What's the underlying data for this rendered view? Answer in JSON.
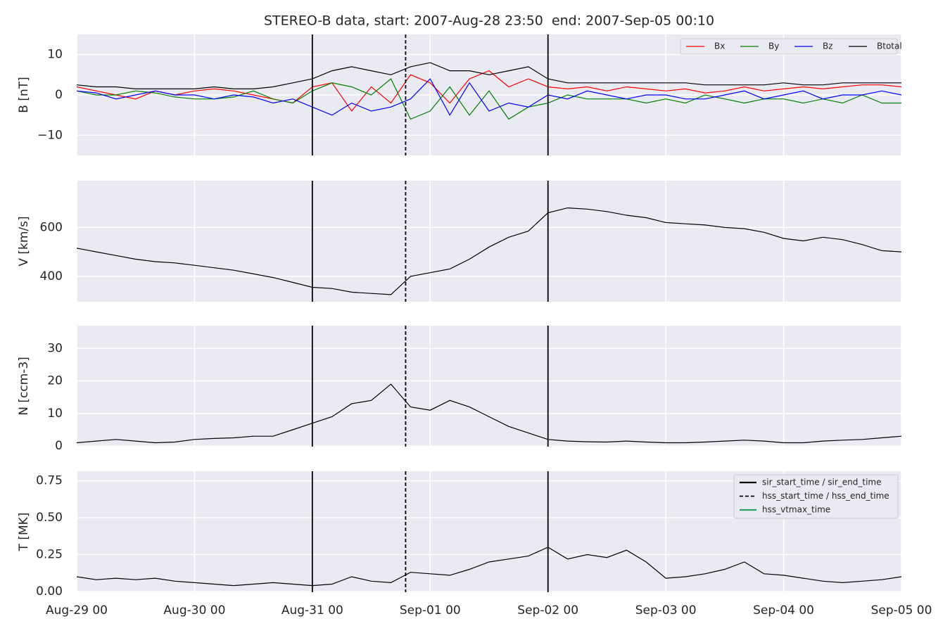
{
  "chart_data": [
    {
      "type": "line",
      "title": "STEREO-B data, start: 2007-Aug-28 23:50  end: 2007-Sep-05 00:10",
      "ylabel": "B [nT]",
      "x": [
        "Aug-29 00",
        "Aug-29 04",
        "Aug-29 08",
        "Aug-29 12",
        "Aug-29 16",
        "Aug-29 20",
        "Aug-30 00",
        "Aug-30 04",
        "Aug-30 08",
        "Aug-30 12",
        "Aug-30 16",
        "Aug-30 20",
        "Aug-31 00",
        "Aug-31 04",
        "Aug-31 08",
        "Aug-31 12",
        "Aug-31 16",
        "Aug-31 20",
        "Sep-01 00",
        "Sep-01 04",
        "Sep-01 08",
        "Sep-01 12",
        "Sep-01 16",
        "Sep-01 20",
        "Sep-02 00",
        "Sep-02 04",
        "Sep-02 08",
        "Sep-02 12",
        "Sep-02 16",
        "Sep-02 20",
        "Sep-03 00",
        "Sep-03 04",
        "Sep-03 08",
        "Sep-03 12",
        "Sep-03 16",
        "Sep-03 20",
        "Sep-04 00",
        "Sep-04 04",
        "Sep-04 08",
        "Sep-04 12",
        "Sep-04 16",
        "Sep-04 20",
        "Sep-05 00"
      ],
      "series": [
        {
          "name": "Bx",
          "color": "#ff0000",
          "values": [
            2,
            1,
            0,
            -1,
            1,
            0,
            1,
            1.5,
            1,
            0,
            -1,
            -2,
            2,
            3,
            -4,
            2,
            -2,
            5,
            3,
            -2,
            4,
            6,
            2,
            4,
            2,
            1.5,
            2,
            1,
            2,
            1.5,
            1,
            1.5,
            0.5,
            1,
            2,
            1,
            1.5,
            2,
            1.5,
            2,
            2.5,
            2.5,
            2
          ]
        },
        {
          "name": "By",
          "color": "#008000",
          "values": [
            1,
            0,
            0,
            1,
            0.5,
            -0.5,
            -1,
            -1,
            -0.5,
            1,
            -1,
            -2,
            1,
            3,
            2,
            0,
            4,
            -6,
            -4,
            2,
            -5,
            1,
            -6,
            -3,
            -2,
            0,
            -1,
            -1,
            -1,
            -2,
            -1,
            -2,
            0,
            -1,
            -2,
            -1,
            -1,
            -2,
            -1,
            -2,
            0,
            -2,
            -2
          ]
        },
        {
          "name": "Bz",
          "color": "#0000ff",
          "values": [
            1,
            0.5,
            -1,
            0,
            1,
            0,
            0,
            -1,
            0,
            -0.5,
            -2,
            -1,
            -3,
            -5,
            -2,
            -4,
            -3,
            -1,
            4,
            -5,
            3,
            -4,
            -2,
            -3,
            0,
            -1,
            1,
            0,
            -1,
            0,
            0,
            -1,
            -1,
            0,
            1,
            -1,
            0,
            1,
            -1,
            0,
            0,
            1,
            0
          ]
        },
        {
          "name": "Btotal",
          "color": "#000000",
          "values": [
            2.5,
            2,
            2,
            1.5,
            1.5,
            1.5,
            1.5,
            2,
            1.5,
            1.5,
            2,
            3,
            4,
            6,
            7,
            6,
            5,
            7,
            8,
            6,
            6,
            5,
            6,
            7,
            4,
            3,
            3,
            3,
            3,
            3,
            3,
            3,
            2.5,
            2.5,
            2.5,
            2.5,
            3,
            2.5,
            2.5,
            3,
            3,
            3,
            3
          ]
        }
      ],
      "xlim": [
        "Aug-29 00",
        "Sep-05 00"
      ],
      "xticks": [
        "Aug-29 00",
        "Aug-30 00",
        "Aug-31 00",
        "Sep-01 00",
        "Sep-02 00",
        "Sep-03 00",
        "Sep-04 00",
        "Sep-05 00"
      ],
      "ylim": [
        -15,
        15
      ],
      "yticks": [
        {
          "value": -10,
          "label": "−10"
        },
        0,
        10
      ],
      "vlines": [
        {
          "x": "Aug-31 00",
          "style": "solid"
        },
        {
          "x": "Aug-31 19",
          "style": "dashed"
        },
        {
          "x": "Sep-02 00",
          "style": "solid"
        }
      ],
      "legend": "upper right",
      "grid": true
    },
    {
      "type": "line",
      "ylabel": "V [km/s]",
      "x": [
        "Aug-29 00",
        "Aug-29 04",
        "Aug-29 08",
        "Aug-29 12",
        "Aug-29 16",
        "Aug-29 20",
        "Aug-30 00",
        "Aug-30 04",
        "Aug-30 08",
        "Aug-30 12",
        "Aug-30 16",
        "Aug-30 20",
        "Aug-31 00",
        "Aug-31 04",
        "Aug-31 08",
        "Aug-31 12",
        "Aug-31 16",
        "Aug-31 20",
        "Sep-01 00",
        "Sep-01 04",
        "Sep-01 08",
        "Sep-01 12",
        "Sep-01 16",
        "Sep-01 20",
        "Sep-02 00",
        "Sep-02 04",
        "Sep-02 08",
        "Sep-02 12",
        "Sep-02 16",
        "Sep-02 20",
        "Sep-03 00",
        "Sep-03 04",
        "Sep-03 08",
        "Sep-03 12",
        "Sep-03 16",
        "Sep-03 20",
        "Sep-04 00",
        "Sep-04 04",
        "Sep-04 08",
        "Sep-04 12",
        "Sep-04 16",
        "Sep-04 20",
        "Sep-05 00"
      ],
      "series": [
        {
          "color": "#000000",
          "values": [
            515,
            500,
            485,
            470,
            460,
            455,
            445,
            435,
            425,
            410,
            395,
            375,
            355,
            350,
            335,
            330,
            325,
            400,
            415,
            430,
            470,
            520,
            560,
            585,
            660,
            680,
            675,
            665,
            650,
            640,
            620,
            615,
            610,
            600,
            595,
            580,
            555,
            545,
            560,
            550,
            530,
            505,
            500
          ]
        }
      ],
      "xlim": [
        "Aug-29 00",
        "Sep-05 00"
      ],
      "xticks": [
        "Aug-29 00",
        "Aug-30 00",
        "Aug-31 00",
        "Sep-01 00",
        "Sep-02 00",
        "Sep-03 00",
        "Sep-04 00",
        "Sep-05 00"
      ],
      "ylim": [
        296,
        791
      ],
      "yticks": [
        400,
        600
      ],
      "vlines": [
        {
          "x": "Aug-31 00",
          "style": "solid"
        },
        {
          "x": "Aug-31 19",
          "style": "dashed"
        },
        {
          "x": "Sep-02 00",
          "style": "solid"
        }
      ],
      "grid": true
    },
    {
      "type": "line",
      "ylabel": "N [ccm-3]",
      "x": [
        "Aug-29 00",
        "Aug-29 04",
        "Aug-29 08",
        "Aug-29 12",
        "Aug-29 16",
        "Aug-29 20",
        "Aug-30 00",
        "Aug-30 04",
        "Aug-30 08",
        "Aug-30 12",
        "Aug-30 16",
        "Aug-30 20",
        "Aug-31 00",
        "Aug-31 04",
        "Aug-31 08",
        "Aug-31 12",
        "Aug-31 16",
        "Aug-31 20",
        "Sep-01 00",
        "Sep-01 04",
        "Sep-01 08",
        "Sep-01 12",
        "Sep-01 16",
        "Sep-01 20",
        "Sep-02 00",
        "Sep-02 04",
        "Sep-02 08",
        "Sep-02 12",
        "Sep-02 16",
        "Sep-02 20",
        "Sep-03 00",
        "Sep-03 04",
        "Sep-03 08",
        "Sep-03 12",
        "Sep-03 16",
        "Sep-03 20",
        "Sep-04 00",
        "Sep-04 04",
        "Sep-04 08",
        "Sep-04 12",
        "Sep-04 16",
        "Sep-04 20",
        "Sep-05 00"
      ],
      "series": [
        {
          "color": "#000000",
          "values": [
            1,
            1.5,
            2,
            1.5,
            1,
            1.2,
            2,
            2.3,
            2.5,
            3,
            3,
            5,
            7,
            9,
            13,
            14,
            19,
            12,
            11,
            14,
            12,
            9,
            6,
            4,
            2,
            1.5,
            1.3,
            1.2,
            1.5,
            1.2,
            1,
            1,
            1.2,
            1.5,
            1.8,
            1.5,
            1,
            1,
            1.5,
            1.8,
            2,
            2.5,
            3
          ]
        }
      ],
      "xlim": [
        "Aug-29 00",
        "Sep-05 00"
      ],
      "xticks": [
        "Aug-29 00",
        "Aug-30 00",
        "Aug-31 00",
        "Sep-01 00",
        "Sep-02 00",
        "Sep-03 00",
        "Sep-04 00",
        "Sep-05 00"
      ],
      "ylim": [
        -0.2,
        37
      ],
      "yticks": [
        0,
        10,
        20,
        30
      ],
      "vlines": [
        {
          "x": "Aug-31 00",
          "style": "solid"
        },
        {
          "x": "Aug-31 19",
          "style": "dashed"
        },
        {
          "x": "Sep-02 00",
          "style": "solid"
        }
      ],
      "grid": true
    },
    {
      "type": "line",
      "ylabel": "T [MK]",
      "x": [
        "Aug-29 00",
        "Aug-29 04",
        "Aug-29 08",
        "Aug-29 12",
        "Aug-29 16",
        "Aug-29 20",
        "Aug-30 00",
        "Aug-30 04",
        "Aug-30 08",
        "Aug-30 12",
        "Aug-30 16",
        "Aug-30 20",
        "Aug-31 00",
        "Aug-31 04",
        "Aug-31 08",
        "Aug-31 12",
        "Aug-31 16",
        "Aug-31 20",
        "Sep-01 00",
        "Sep-01 04",
        "Sep-01 08",
        "Sep-01 12",
        "Sep-01 16",
        "Sep-01 20",
        "Sep-02 00",
        "Sep-02 04",
        "Sep-02 08",
        "Sep-02 12",
        "Sep-02 16",
        "Sep-02 20",
        "Sep-03 00",
        "Sep-03 04",
        "Sep-03 08",
        "Sep-03 12",
        "Sep-03 16",
        "Sep-03 20",
        "Sep-04 00",
        "Sep-04 04",
        "Sep-04 08",
        "Sep-04 12",
        "Sep-04 16",
        "Sep-04 20",
        "Sep-05 00"
      ],
      "series": [
        {
          "color": "#000000",
          "values": [
            0.1,
            0.08,
            0.09,
            0.08,
            0.09,
            0.07,
            0.06,
            0.05,
            0.04,
            0.05,
            0.06,
            0.05,
            0.04,
            0.05,
            0.1,
            0.07,
            0.06,
            0.13,
            0.12,
            0.11,
            0.15,
            0.2,
            0.22,
            0.24,
            0.3,
            0.22,
            0.25,
            0.23,
            0.28,
            0.2,
            0.09,
            0.1,
            0.12,
            0.15,
            0.2,
            0.12,
            0.11,
            0.09,
            0.07,
            0.06,
            0.07,
            0.08,
            0.1
          ]
        }
      ],
      "xlim": [
        "Aug-29 00",
        "Sep-05 00"
      ],
      "xticks": [
        "Aug-29 00",
        "Aug-30 00",
        "Aug-31 00",
        "Sep-01 00",
        "Sep-02 00",
        "Sep-03 00",
        "Sep-04 00",
        "Sep-05 00"
      ],
      "show_xticklabels": true,
      "ylim": [
        -0.005,
        0.815
      ],
      "yticks": [
        {
          "value": 0,
          "label": "0.00"
        },
        {
          "value": 0.25,
          "label": "0.25"
        },
        {
          "value": 0.5,
          "label": "0.50"
        },
        {
          "value": 0.75,
          "label": "0.75"
        }
      ],
      "vlines": [
        {
          "x": "Aug-31 00",
          "style": "solid"
        },
        {
          "x": "Aug-31 19",
          "style": "dashed"
        },
        {
          "x": "Sep-02 00",
          "style": "solid"
        }
      ],
      "legend_lines": [
        {
          "name": "sir_start_time / sir_end_time",
          "color": "#000000",
          "style": "solid"
        },
        {
          "name": "hss_start_time / hss_end_time",
          "color": "#000000",
          "style": "dashed"
        },
        {
          "name": "hss_vtmax_time",
          "color": "#2ca25f",
          "style": "solid"
        }
      ],
      "legend": "upper right",
      "grid": true
    }
  ]
}
